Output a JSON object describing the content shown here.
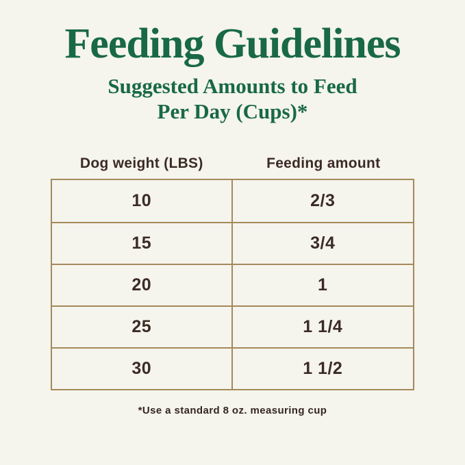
{
  "colors": {
    "bg": "#f5f4ed",
    "green": "#186944",
    "border": "#a5895a",
    "ink": "#3b2b24"
  },
  "title": "Feeding Guidelines",
  "subtitle": {
    "line1": "Suggested Amounts to Feed",
    "line2": "Per Day (Cups)*"
  },
  "table": {
    "headers": {
      "weight": "Dog weight (LBS)",
      "amount": "Feeding amount"
    },
    "rows": [
      {
        "weight": "10",
        "amount": "2/3"
      },
      {
        "weight": "15",
        "amount": "3/4"
      },
      {
        "weight": "20",
        "amount": "1"
      },
      {
        "weight": "25",
        "amount": "1 1/4"
      },
      {
        "weight": "30",
        "amount": "1 1/2"
      }
    ]
  },
  "footnote": "*Use a standard 8 oz. measuring cup",
  "chart_data": {
    "type": "table",
    "title": "Feeding Guidelines",
    "subtitle": "Suggested Amounts to Feed Per Day (Cups)*",
    "columns": [
      "Dog weight (LBS)",
      "Feeding amount"
    ],
    "rows": [
      [
        "10",
        "2/3"
      ],
      [
        "15",
        "3/4"
      ],
      [
        "20",
        "1"
      ],
      [
        "25",
        "1 1/4"
      ],
      [
        "30",
        "1 1/2"
      ]
    ],
    "footnote": "*Use a standard 8 oz. measuring cup"
  }
}
